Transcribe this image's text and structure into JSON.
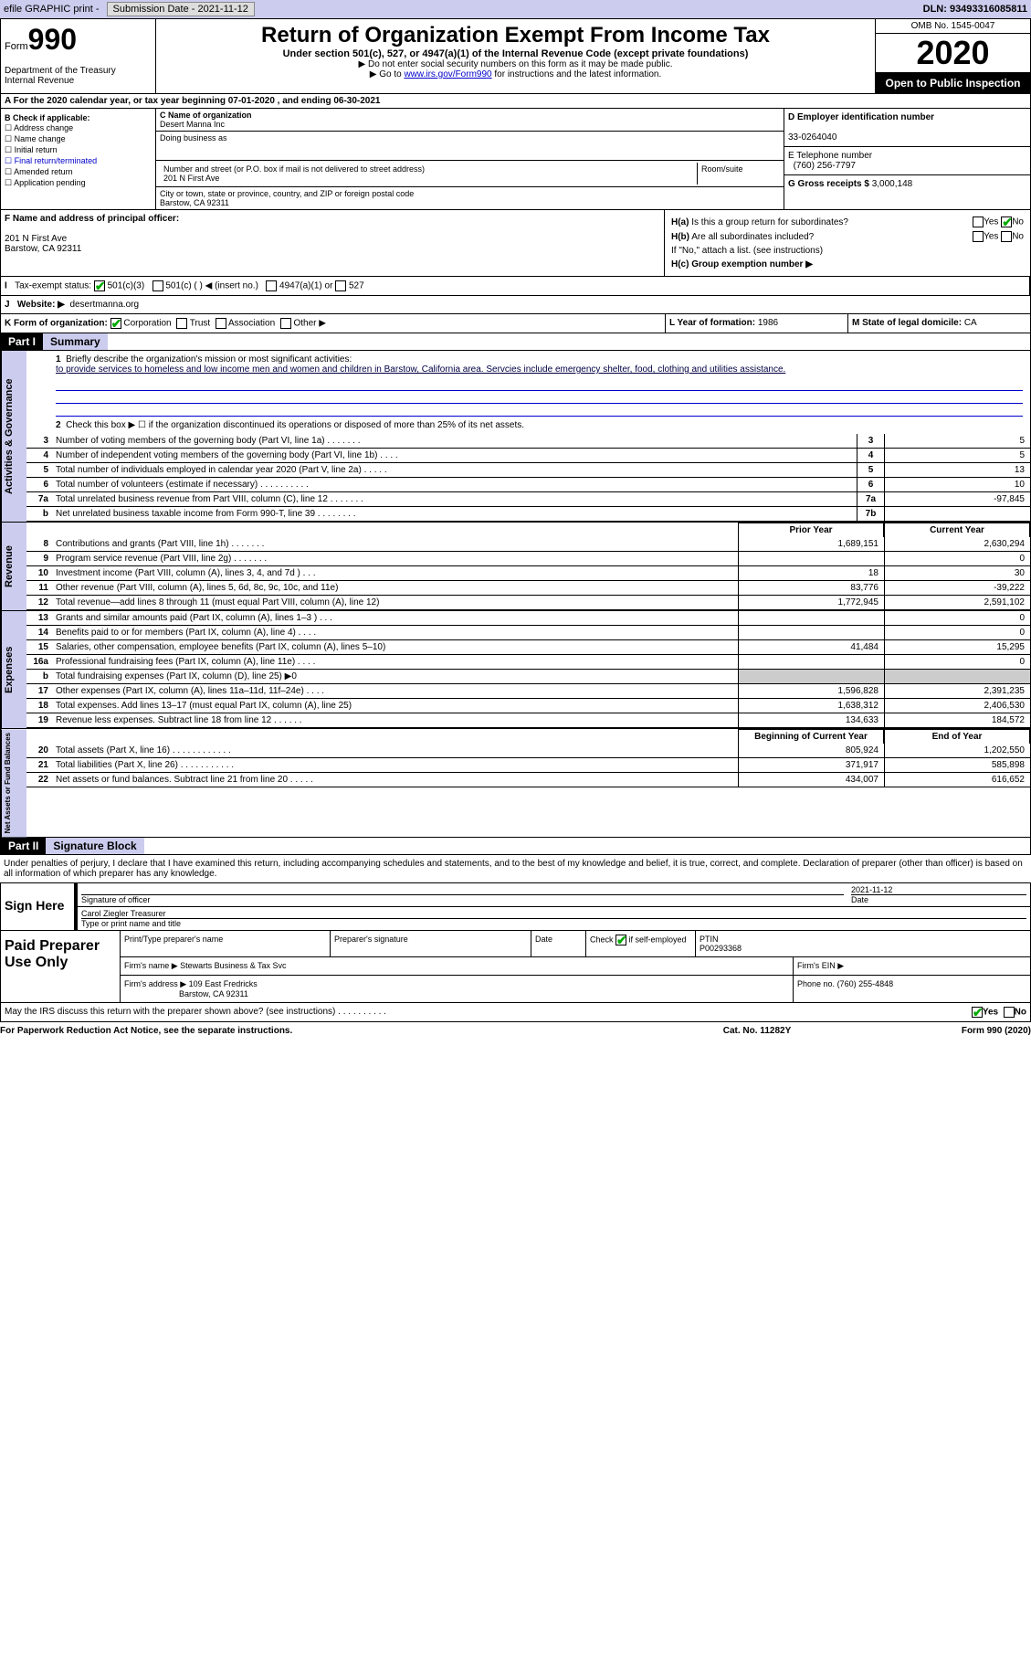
{
  "topbar": {
    "efile": "efile GRAPHIC print -",
    "submission": "Submission Date - 2021-11-12",
    "dln": "DLN: 93493316085811"
  },
  "header": {
    "form_prefix": "Form",
    "form_num": "990",
    "dept": "Department of the Treasury\nInternal Revenue",
    "title": "Return of Organization Exempt From Income Tax",
    "subtitle": "Under section 501(c), 527, or 4947(a)(1) of the Internal Revenue Code (except private foundations)",
    "note1": "▶ Do not enter social security numbers on this form as it may be made public.",
    "note2_pre": "▶ Go to ",
    "note2_link": "www.irs.gov/Form990",
    "note2_post": " for instructions and the latest information.",
    "omb": "OMB No. 1545-0047",
    "year": "2020",
    "open": "Open to Public Inspection"
  },
  "lineA": "For the 2020 calendar year, or tax year beginning 07-01-2020    , and ending 06-30-2021",
  "boxB": {
    "title": "B Check if applicable:",
    "items": [
      "Address change",
      "Name change",
      "Initial return",
      "Final return/terminated",
      "Amended return",
      "Application pending"
    ]
  },
  "boxC": {
    "name_label": "C Name of organization",
    "name": "Desert Manna Inc",
    "dba_label": "Doing business as",
    "addr_label": "Number and street (or P.O. box if mail is not delivered to street address)",
    "addr": "201 N First Ave",
    "room_label": "Room/suite",
    "city_label": "City or town, state or province, country, and ZIP or foreign postal code",
    "city": "Barstow, CA  92311"
  },
  "boxD": {
    "ein_label": "D Employer identification number",
    "ein": "33-0264040",
    "tel_label": "E Telephone number",
    "tel": "(760) 256-7797",
    "gross_label": "G Gross receipts $",
    "gross": "3,000,148"
  },
  "boxF": {
    "label": "F  Name and address of principal officer:",
    "addr1": "201 N First Ave",
    "addr2": "Barstow, CA  92311"
  },
  "boxH": {
    "ha": "H(a)  Is this a group return for subordinates?",
    "hb": "H(b)  Are all subordinates included?",
    "hb_note": "If \"No,\" attach a list. (see instructions)",
    "hc": "H(c)  Group exemption number ▶"
  },
  "boxI": {
    "label": "Tax-exempt status:",
    "opt1": "501(c)(3)",
    "opt2": "501(c) (  ) ◀ (insert no.)",
    "opt3": "4947(a)(1) or",
    "opt4": "527"
  },
  "boxJ": {
    "label": "Website: ▶",
    "value": "desertmanna.org"
  },
  "boxK": {
    "label": "K Form of organization:",
    "opts": [
      "Corporation",
      "Trust",
      "Association",
      "Other ▶"
    ]
  },
  "boxL": {
    "label": "L Year of formation:",
    "value": "1986"
  },
  "boxM": {
    "label": "M State of legal domicile:",
    "value": "CA"
  },
  "parts": {
    "p1": "Part I",
    "p1_title": "Summary",
    "p2": "Part II",
    "p2_title": "Signature Block"
  },
  "summary": {
    "line1_label": "Briefly describe the organization's mission or most significant activities:",
    "mission": "to provide services to homeless and low income men and women and children in Barstow, California area. Servcies include emergency shelter, food, clothing and utilities assistance.",
    "line2": "Check this box ▶ ☐  if the organization discontinued its operations or disposed of more than 25% of its net assets.",
    "prior_hdr": "Prior Year",
    "current_hdr": "Current Year",
    "begin_hdr": "Beginning of Current Year",
    "end_hdr": "End of Year",
    "lines_gov": [
      {
        "n": "3",
        "d": "Number of voting members of the governing body (Part VI, line 1a)  .    .    .    .    .    .    .",
        "box": "3",
        "v": "5"
      },
      {
        "n": "4",
        "d": "Number of independent voting members of the governing body (Part VI, line 1b)  .    .    .    .",
        "box": "4",
        "v": "5"
      },
      {
        "n": "5",
        "d": "Total number of individuals employed in calendar year 2020 (Part V, line 2a)  .    .    .    .    .",
        "box": "5",
        "v": "13"
      },
      {
        "n": "6",
        "d": "Total number of volunteers (estimate if necessary)  .    .    .    .    .    .    .    .    .    .",
        "box": "6",
        "v": "10"
      },
      {
        "n": "7a",
        "d": "Total unrelated business revenue from Part VIII, column (C), line 12  .    .    .    .    .    .    .",
        "box": "7a",
        "v": "-97,845"
      },
      {
        "n": "b",
        "d": "Net unrelated business taxable income from Form 990-T, line 39  .    .    .    .    .    .    .    .",
        "box": "7b",
        "v": ""
      }
    ],
    "lines_rev": [
      {
        "n": "8",
        "d": "Contributions and grants (Part VIII, line 1h)  .    .    .    .    .    .    .",
        "p": "1,689,151",
        "c": "2,630,294"
      },
      {
        "n": "9",
        "d": "Program service revenue (Part VIII, line 2g)  .    .    .    .    .    .    .",
        "p": "",
        "c": "0"
      },
      {
        "n": "10",
        "d": "Investment income (Part VIII, column (A), lines 3, 4, and 7d )  .    .    .",
        "p": "18",
        "c": "30"
      },
      {
        "n": "11",
        "d": "Other revenue (Part VIII, column (A), lines 5, 6d, 8c, 9c, 10c, and 11e)",
        "p": "83,776",
        "c": "-39,222"
      },
      {
        "n": "12",
        "d": "Total revenue—add lines 8 through 11 (must equal Part VIII, column (A), line 12)",
        "p": "1,772,945",
        "c": "2,591,102"
      }
    ],
    "lines_exp": [
      {
        "n": "13",
        "d": "Grants and similar amounts paid (Part IX, column (A), lines 1–3 )  .    .    .",
        "p": "",
        "c": "0"
      },
      {
        "n": "14",
        "d": "Benefits paid to or for members (Part IX, column (A), line 4)  .    .    .    .",
        "p": "",
        "c": "0"
      },
      {
        "n": "15",
        "d": "Salaries, other compensation, employee benefits (Part IX, column (A), lines 5–10)",
        "p": "41,484",
        "c": "15,295"
      },
      {
        "n": "16a",
        "d": "Professional fundraising fees (Part IX, column (A), line 11e)  .    .    .    .",
        "p": "",
        "c": "0"
      },
      {
        "n": "b",
        "d": "Total fundraising expenses (Part IX, column (D), line 25) ▶0",
        "p": "SHADE",
        "c": "SHADE"
      },
      {
        "n": "17",
        "d": "Other expenses (Part IX, column (A), lines 11a–11d, 11f–24e)  .    .    .    .",
        "p": "1,596,828",
        "c": "2,391,235"
      },
      {
        "n": "18",
        "d": "Total expenses. Add lines 13–17 (must equal Part IX, column (A), line 25)",
        "p": "1,638,312",
        "c": "2,406,530"
      },
      {
        "n": "19",
        "d": "Revenue less expenses. Subtract line 18 from line 12  .    .    .    .    .    .",
        "p": "134,633",
        "c": "184,572"
      }
    ],
    "lines_net": [
      {
        "n": "20",
        "d": "Total assets (Part X, line 16)  .    .    .    .    .    .    .    .    .    .    .    .",
        "p": "805,924",
        "c": "1,202,550"
      },
      {
        "n": "21",
        "d": "Total liabilities (Part X, line 26)  .    .    .    .    .    .    .    .    .    .    .",
        "p": "371,917",
        "c": "585,898"
      },
      {
        "n": "22",
        "d": "Net assets or fund balances. Subtract line 21 from line 20  .    .    .    .    .",
        "p": "434,007",
        "c": "616,652"
      }
    ],
    "side_labels": {
      "gov": "Activities & Governance",
      "rev": "Revenue",
      "exp": "Expenses",
      "net": "Net Assets or Fund Balances"
    }
  },
  "sig": {
    "penalty": "Under penalties of perjury, I declare that I have examined this return, including accompanying schedules and statements, and to the best of my knowledge and belief, it is true, correct, and complete. Declaration of preparer (other than officer) is based on all information of which preparer has any knowledge.",
    "sign_here": "Sign Here",
    "sig_officer": "Signature of officer",
    "date": "Date",
    "date_val": "2021-11-12",
    "name": "Carol Ziegler Treasurer",
    "name_label": "Type or print name and title"
  },
  "prep": {
    "title": "Paid Preparer Use Only",
    "h1": "Print/Type preparer's name",
    "h2": "Preparer's signature",
    "h3": "Date",
    "h4": "Check ☑ if self-employed",
    "h5": "PTIN",
    "ptin": "P00293368",
    "firm_label": "Firm's name    ▶",
    "firm": "Stewarts Business & Tax Svc",
    "ein_label": "Firm's EIN ▶",
    "addr_label": "Firm's address ▶",
    "addr1": "109 East Fredricks",
    "addr2": "Barstow, CA  92311",
    "phone_label": "Phone no.",
    "phone": "(760) 255-4848"
  },
  "footer": {
    "q": "May the IRS discuss this return with the preparer shown above? (see instructions)  .    .    .    .    .    .    .    .    .    .",
    "yes": "Yes",
    "no": "No"
  },
  "bottom": {
    "left": "For Paperwork Reduction Act Notice, see the separate instructions.",
    "center": "Cat. No. 11282Y",
    "right": "Form 990 (2020)"
  }
}
